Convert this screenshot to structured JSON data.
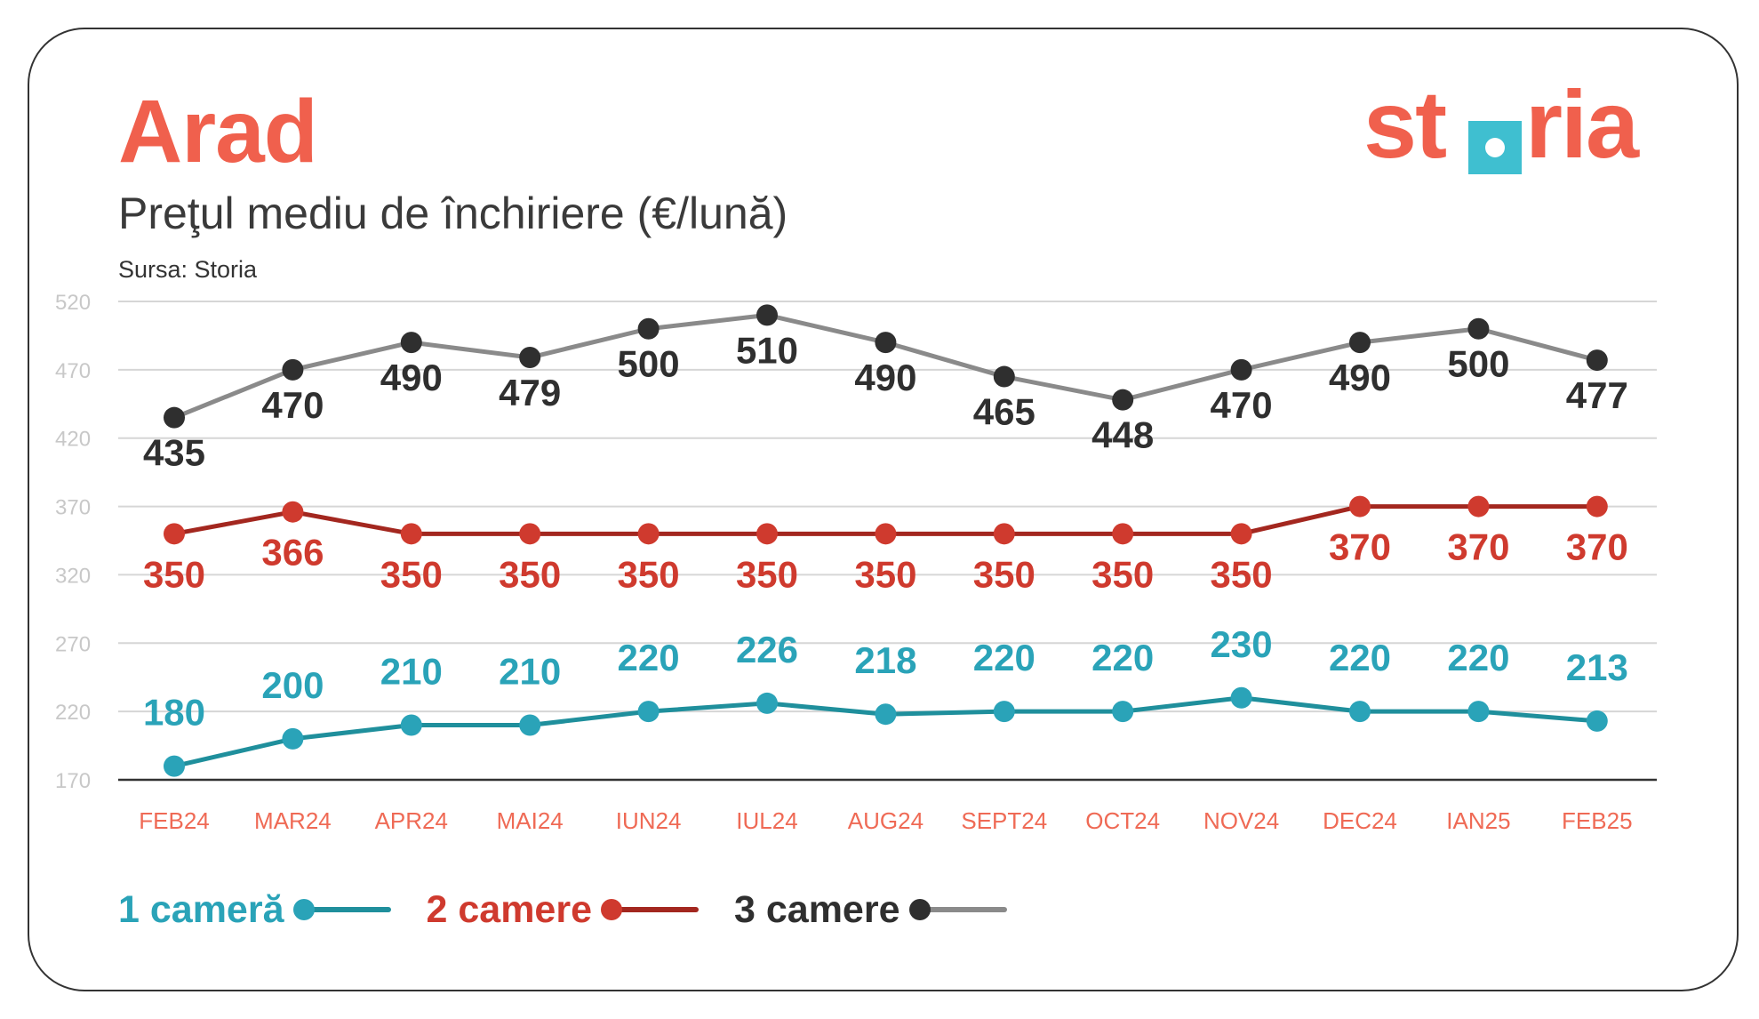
{
  "header": {
    "city": "Arad",
    "subtitle": "Preţul mediu de închiriere (€/lună)",
    "source": "Sursa: Storia",
    "logo": "storia"
  },
  "colors": {
    "brand": "#f0604d",
    "logo_square": "#3fbfd0",
    "one_room_label": "#2aa3b8",
    "one_room_line": "#1f8f9c",
    "two_rooms_label": "#cf3a2e",
    "two_rooms_line": "#a3271f",
    "three_rooms_label": "#2f2f2f",
    "three_rooms_line": "#8a8a8a",
    "grid": "#d6d6d6",
    "axis": "#333333",
    "tick": "#c8c8c8",
    "category": "#ef6a55"
  },
  "chart_data": {
    "type": "line",
    "categories": [
      "FEB24",
      "MAR24",
      "APR24",
      "MAI24",
      "IUN24",
      "IUL24",
      "AUG24",
      "SEPT24",
      "OCT24",
      "NOV24",
      "DEC24",
      "IAN25",
      "FEB25"
    ],
    "yticks": [
      170,
      220,
      270,
      320,
      370,
      420,
      470,
      520
    ],
    "ylim": [
      170,
      520
    ],
    "grid": true,
    "legend_position": "bottom-left",
    "series": [
      {
        "name": "1 cameră",
        "values": [
          180,
          200,
          210,
          210,
          220,
          226,
          218,
          220,
          220,
          230,
          220,
          220,
          213
        ]
      },
      {
        "name": "2 camere",
        "values": [
          350,
          366,
          350,
          350,
          350,
          350,
          350,
          350,
          350,
          350,
          370,
          370,
          370
        ]
      },
      {
        "name": "3 camere",
        "values": [
          435,
          470,
          490,
          479,
          500,
          510,
          490,
          465,
          448,
          470,
          490,
          500,
          477
        ]
      }
    ]
  }
}
